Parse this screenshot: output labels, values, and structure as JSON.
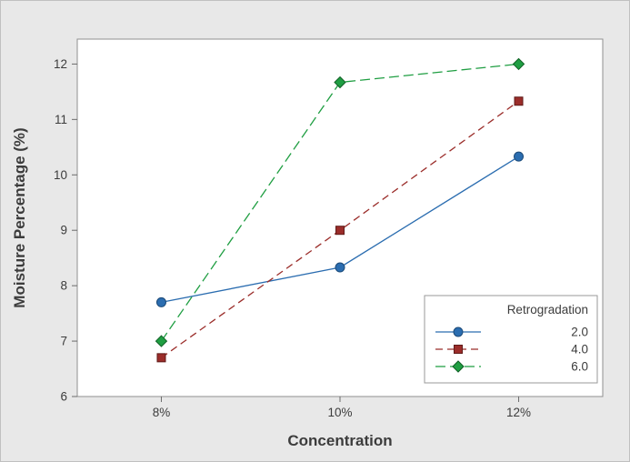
{
  "figure": {
    "background": "#e8e8e8",
    "plot_background": "#ffffff",
    "plot_border_color": "#8f8f8f",
    "tick_color": "#6b6b6b",
    "text_color": "#3c3c3c"
  },
  "chart_data": {
    "type": "line",
    "title": "",
    "xlabel": "Concentration",
    "ylabel": "Moisture Percentage (%)",
    "categories": [
      "8%",
      "10%",
      "12%"
    ],
    "y_ticks": [
      6,
      7,
      8,
      9,
      10,
      11,
      12
    ],
    "ylim": [
      6,
      12.45
    ],
    "grid": false,
    "legend": {
      "title": "Retrogradation",
      "position": "lower-right"
    },
    "series": [
      {
        "name": "2.0",
        "values": [
          7.7,
          8.33,
          10.33
        ],
        "color": "#2b6db0",
        "marker_edge": "#1c4a78",
        "marker": "circle",
        "line_style": "solid"
      },
      {
        "name": "4.0",
        "values": [
          6.7,
          9.0,
          11.33
        ],
        "color": "#9b2d2a",
        "marker_edge": "#5f1a18",
        "marker": "square",
        "line_style": "dashed"
      },
      {
        "name": "6.0",
        "values": [
          7.0,
          11.67,
          12.0
        ],
        "color": "#1f9e42",
        "marker_edge": "#0f5f24",
        "marker": "diamond",
        "line_style": "dashed-long"
      }
    ]
  }
}
